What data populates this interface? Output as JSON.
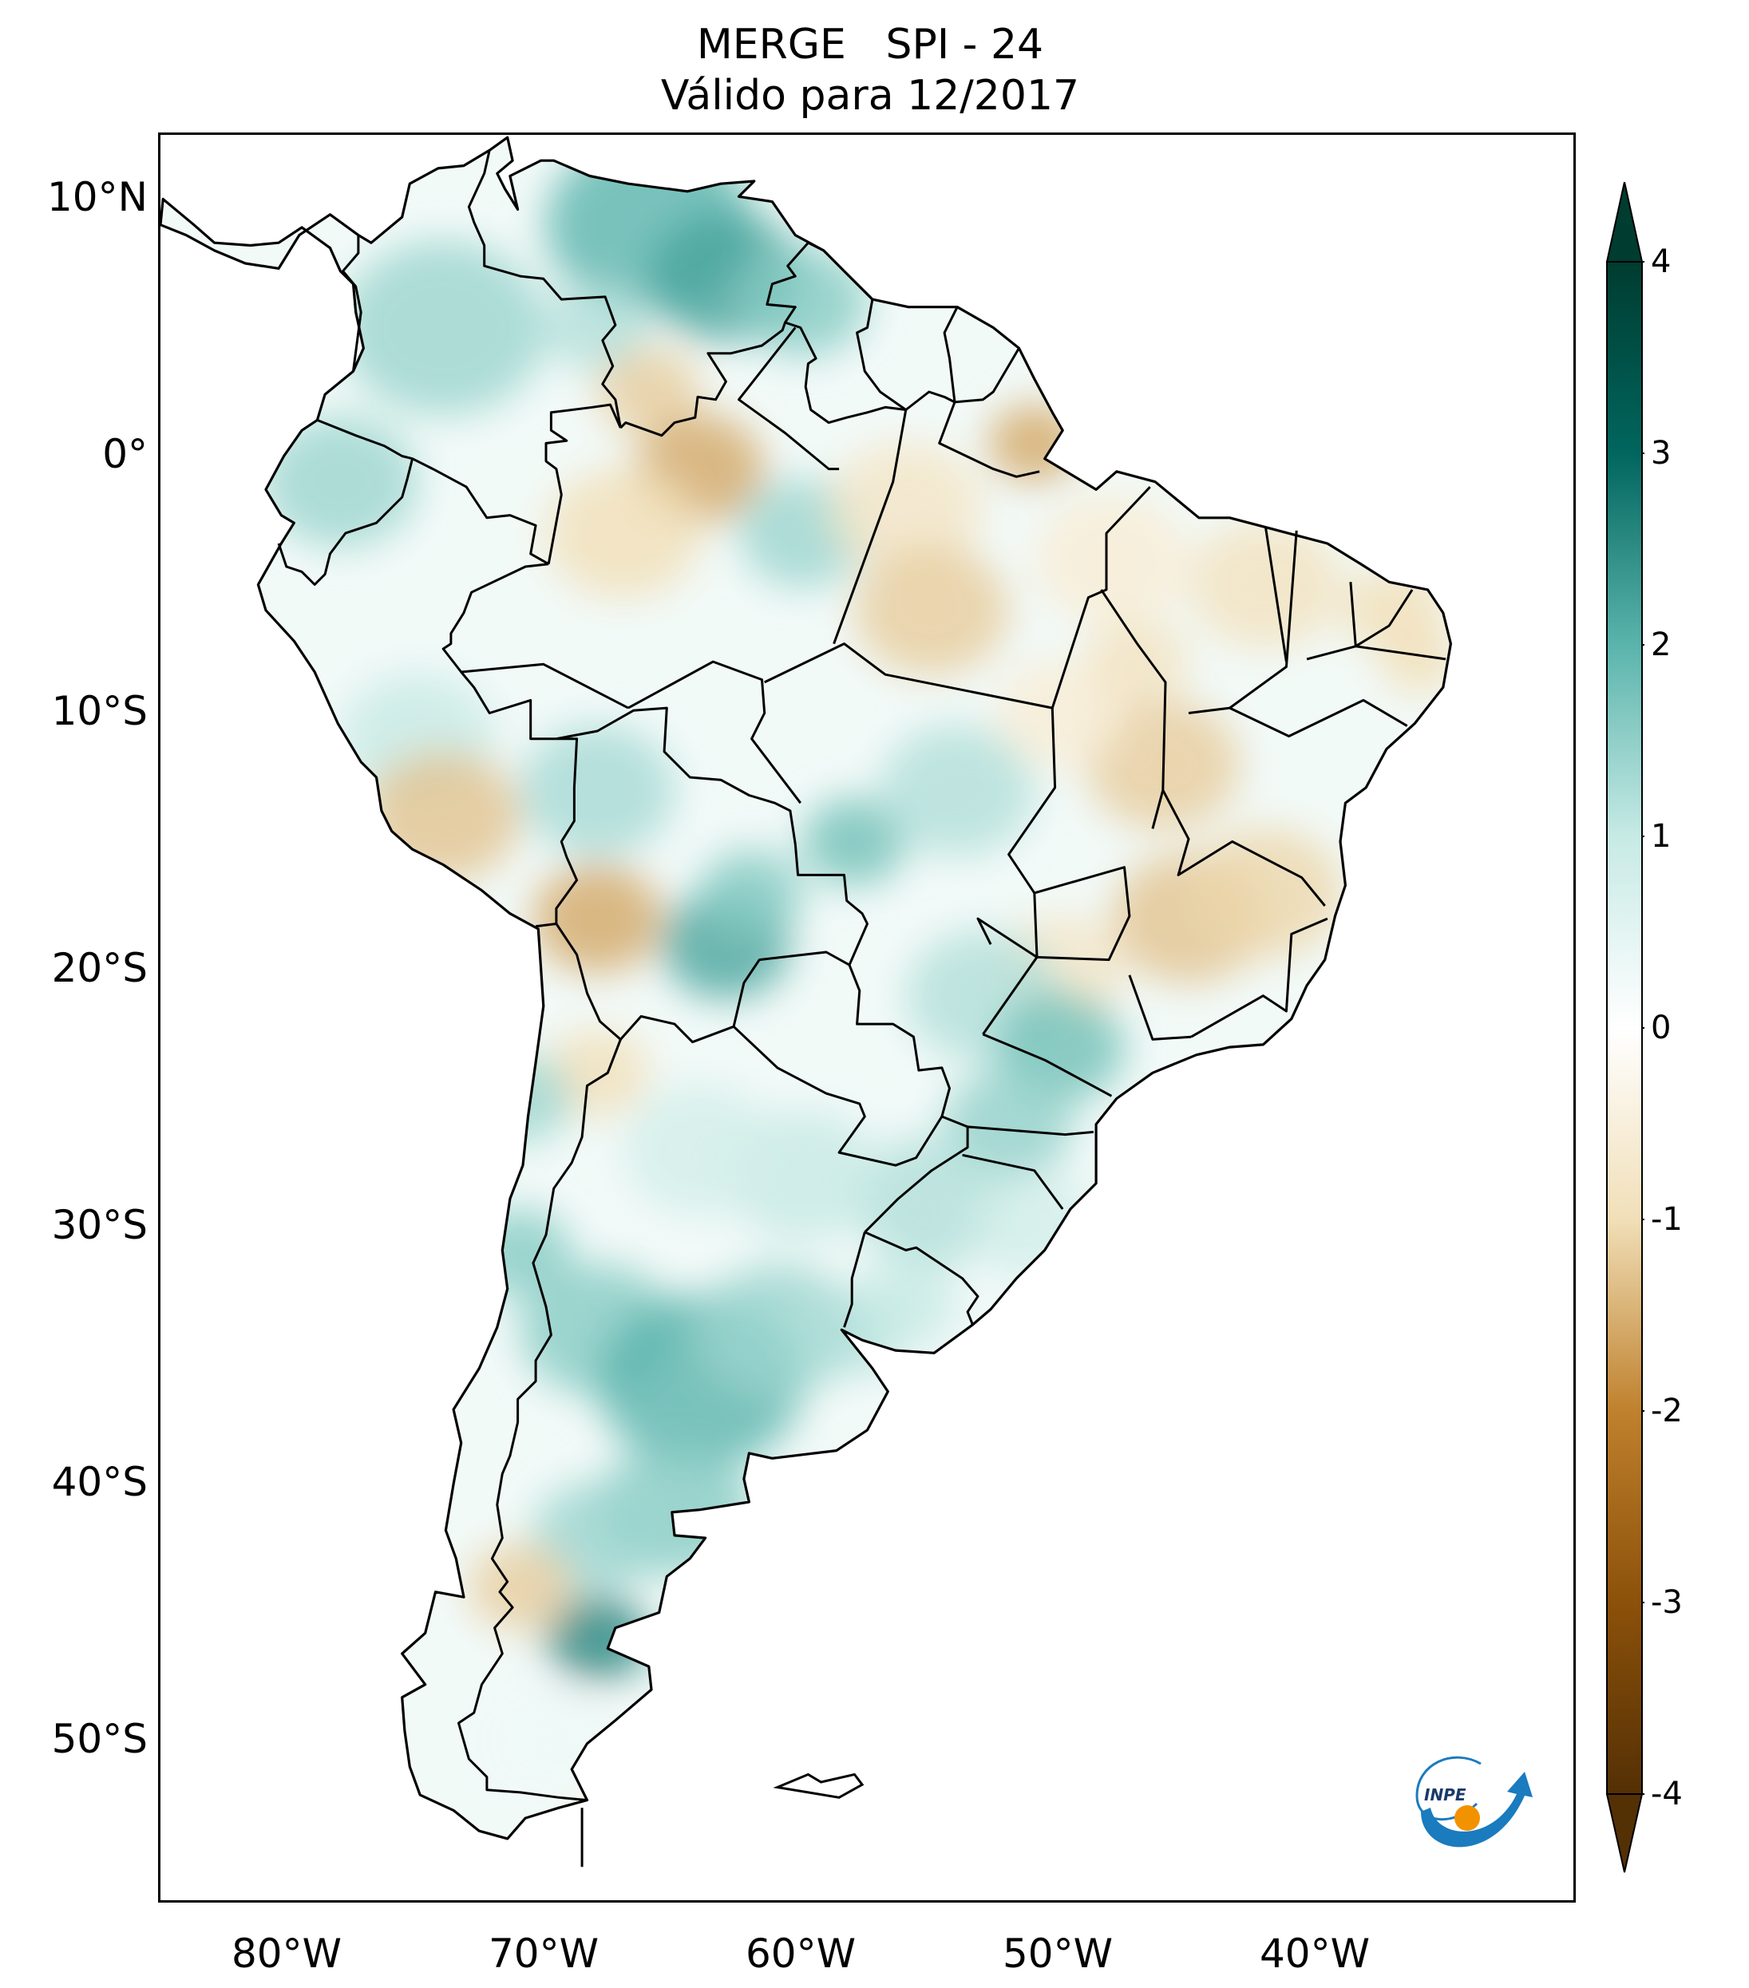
{
  "title": {
    "line1": "MERGE   SPI - 24",
    "line2": "Válido para 12/2017"
  },
  "map": {
    "region": "South America",
    "projection": "PlateCarree",
    "lon_range": [
      -85,
      -30
    ],
    "lat_range": [
      -56,
      13
    ],
    "coastline_color": "#000000",
    "lat_ticks": [
      {
        "value": 10,
        "label": "10°N"
      },
      {
        "value": 0,
        "label": "0°"
      },
      {
        "value": -10,
        "label": "10°S"
      },
      {
        "value": -20,
        "label": "20°S"
      },
      {
        "value": -30,
        "label": "30°S"
      },
      {
        "value": -40,
        "label": "40°S"
      },
      {
        "value": -50,
        "label": "50°S"
      }
    ],
    "lon_ticks": [
      {
        "value": -80,
        "label": "80°W"
      },
      {
        "value": -70,
        "label": "70°W"
      },
      {
        "value": -60,
        "label": "60°W"
      },
      {
        "value": -50,
        "label": "50°W"
      },
      {
        "value": -40,
        "label": "40°W"
      }
    ]
  },
  "colorbar": {
    "colormap": "BrBG",
    "min": -4,
    "max": 4,
    "extend": "both",
    "ticks": [
      {
        "value": 4,
        "label": "4"
      },
      {
        "value": 3,
        "label": "3"
      },
      {
        "value": 2,
        "label": "2"
      },
      {
        "value": 1,
        "label": "1"
      },
      {
        "value": 0,
        "label": "0"
      },
      {
        "value": -1,
        "label": "-1"
      },
      {
        "value": -2,
        "label": "-2"
      },
      {
        "value": -3,
        "label": "-3"
      },
      {
        "value": -4,
        "label": "-4"
      }
    ],
    "stops": [
      {
        "value": -4,
        "color": "#543005"
      },
      {
        "value": -3,
        "color": "#8c510a"
      },
      {
        "value": -2,
        "color": "#bf812d"
      },
      {
        "value": -1,
        "color": "#f1dfb8"
      },
      {
        "value": 0,
        "color": "#ffffff"
      },
      {
        "value": 1,
        "color": "#c7eae5"
      },
      {
        "value": 2,
        "color": "#5ab4ac"
      },
      {
        "value": 3,
        "color": "#01665e"
      },
      {
        "value": 4,
        "color": "#003c30"
      }
    ]
  },
  "logo": {
    "text": "INPE",
    "colors": {
      "ring": "#1a7bbf",
      "dot": "#f39200"
    }
  }
}
